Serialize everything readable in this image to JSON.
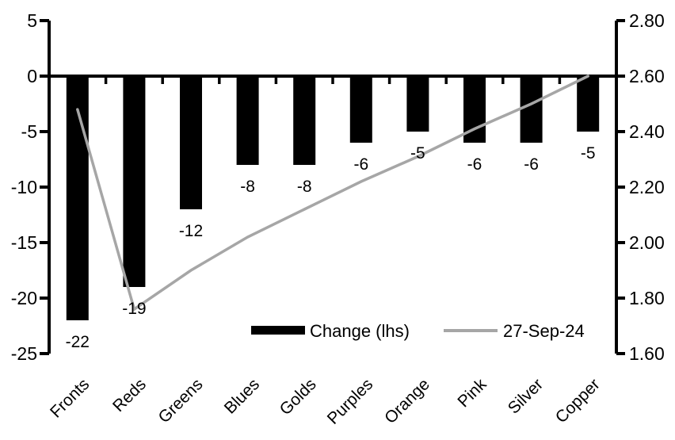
{
  "chart_data": {
    "type": "combo-bar-line",
    "categories": [
      "Fronts",
      "Reds",
      "Greens",
      "Blues",
      "Golds",
      "Purples",
      "Orange",
      "Pink",
      "Silver",
      "Copper"
    ],
    "series": [
      {
        "name": "Change (lhs)",
        "type": "bar",
        "axis": "left",
        "color": "#000000",
        "values": [
          -22,
          -19,
          -12,
          -8,
          -8,
          -6,
          -5,
          -6,
          -6,
          -5
        ],
        "data_labels": [
          "-22",
          "-19",
          "-12",
          "-8",
          "-8",
          "-6",
          "-5",
          "-6",
          "-6",
          "-5"
        ]
      },
      {
        "name": "27-Sep-24",
        "type": "line",
        "axis": "right",
        "color": "#a6a6a6",
        "values": [
          2.48,
          1.76,
          1.9,
          2.02,
          2.12,
          2.22,
          2.31,
          2.41,
          2.5,
          2.6
        ]
      }
    ],
    "left_axis": {
      "min": -25,
      "max": 5,
      "step": 5,
      "tick_labels": [
        "5",
        "0",
        "-5",
        "-10",
        "-15",
        "-20",
        "-25"
      ]
    },
    "right_axis": {
      "min": 1.6,
      "max": 2.8,
      "step": 0.2,
      "tick_labels": [
        "2.80",
        "2.60",
        "2.40",
        "2.20",
        "2.00",
        "1.80",
        "1.60"
      ]
    },
    "legend": {
      "position": "inside-bottom-center",
      "items": [
        {
          "label": "Change (lhs)",
          "swatch": "bar",
          "color": "#000000"
        },
        {
          "label": "27-Sep-24",
          "swatch": "line",
          "color": "#a6a6a6"
        }
      ]
    },
    "grid": false,
    "title": ""
  }
}
